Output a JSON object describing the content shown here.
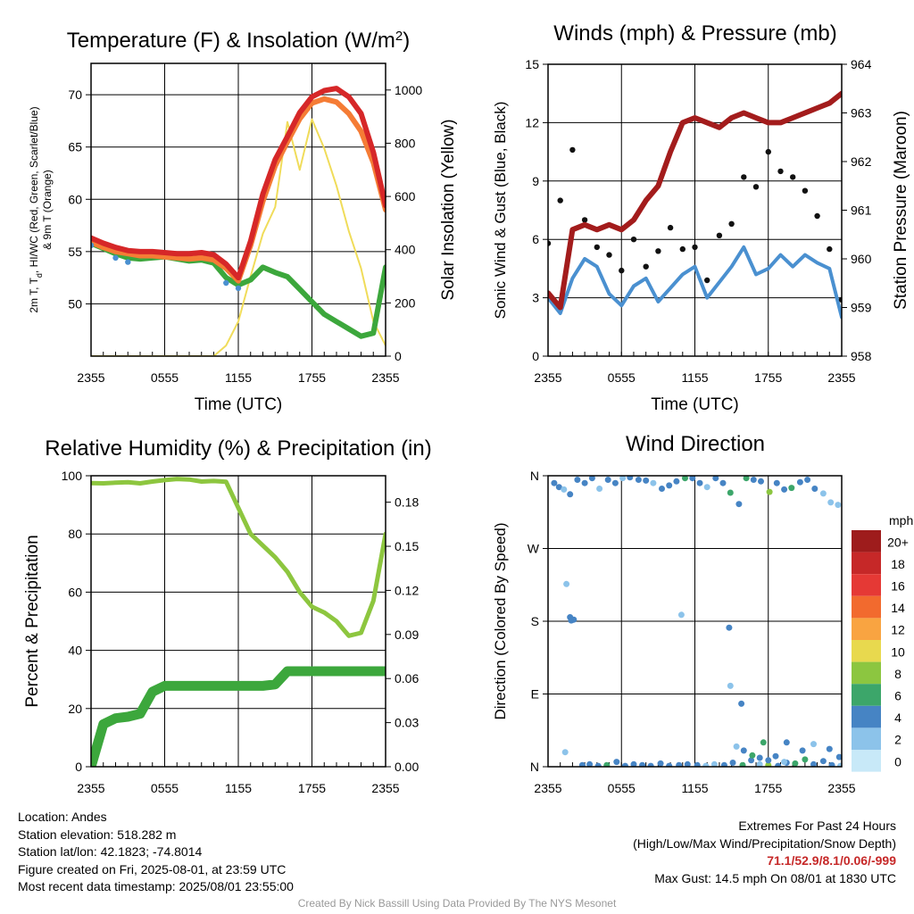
{
  "x_tick_labels": [
    "2355",
    "0555",
    "1155",
    "1755",
    "2355"
  ],
  "chart_data": [
    {
      "type": "line",
      "title": "Temperature (F) & Insolation (W/m²)",
      "xlabel": "Time (UTC)",
      "ylabel": "2m T, Td, HI/WC (Red, Green, Scarlet/Blue) & 9m T (Orange)",
      "ylabel_lines": [
        "2m T, T",
        "d",
        ", HI/WC (Red, Green, Scarlet/Blue)",
        "& 9m T (Orange)"
      ],
      "y2label": "Solar Insolation (Yellow)",
      "ylim": [
        45,
        73
      ],
      "y_ticks": [
        50,
        55,
        60,
        65,
        70
      ],
      "y2lim": [
        0,
        1100
      ],
      "y2_ticks": [
        0,
        200,
        400,
        600,
        800,
        1000
      ],
      "x": [
        0,
        1,
        2,
        3,
        4,
        5,
        6,
        7,
        8,
        9,
        10,
        11,
        12,
        13,
        14,
        15,
        16,
        17,
        18,
        19,
        20,
        21,
        22,
        23,
        24
      ],
      "series": [
        {
          "name": "2m T",
          "color": "#d62728",
          "axis": "left",
          "values": [
            56.3,
            55.8,
            55.4,
            55.1,
            55.0,
            55.0,
            54.9,
            54.8,
            54.8,
            54.9,
            54.7,
            53.8,
            52.5,
            56.0,
            60.5,
            63.8,
            66.0,
            68.3,
            69.8,
            70.4,
            70.6,
            69.8,
            68.2,
            64.5,
            59.4
          ]
        },
        {
          "name": "9m T",
          "color": "#f57c35",
          "axis": "left",
          "values": [
            55.9,
            55.4,
            55.0,
            54.8,
            54.6,
            54.6,
            54.5,
            54.4,
            54.3,
            54.4,
            54.2,
            53.4,
            52.2,
            55.6,
            59.8,
            63.2,
            65.5,
            67.7,
            69.2,
            69.6,
            69.3,
            68.2,
            66.5,
            63.5,
            59.0
          ]
        },
        {
          "name": "Td",
          "color": "#3ca73c",
          "axis": "left",
          "values": [
            55.8,
            55.3,
            54.8,
            54.4,
            54.3,
            54.4,
            54.5,
            54.3,
            54.1,
            54.2,
            53.9,
            52.5,
            51.8,
            52.3,
            53.5,
            53.0,
            52.6,
            51.4,
            50.2,
            49.0,
            48.3,
            47.6,
            46.9,
            47.2,
            53.5
          ]
        },
        {
          "name": "HI/WC",
          "color": "#4a90d0",
          "axis": "left",
          "values": [
            55.6,
            null,
            54.4,
            54.0,
            null,
            null,
            null,
            null,
            null,
            null,
            null,
            52.0,
            51.5,
            null,
            null,
            null,
            null,
            null,
            null,
            null,
            null,
            null,
            null,
            null,
            null
          ]
        },
        {
          "name": "Solar Insolation",
          "color": "#f0dc5a",
          "axis": "right",
          "values": [
            0,
            0,
            0,
            0,
            0,
            0,
            0,
            0,
            0,
            0,
            0,
            40,
            130,
            300,
            460,
            560,
            880,
            700,
            890,
            780,
            640,
            470,
            330,
            130,
            40
          ]
        }
      ]
    },
    {
      "type": "line",
      "title": "Winds (mph) & Pressure (mb)",
      "xlabel": "Time (UTC)",
      "ylabel": "Sonic Wind & Gust (Blue, Black)",
      "y2label": "Station Pressure (Maroon)",
      "ylim": [
        0,
        15
      ],
      "y_ticks": [
        0,
        3,
        6,
        9,
        12,
        15
      ],
      "y2lim": [
        958,
        964
      ],
      "y2_ticks": [
        958,
        959,
        960,
        961,
        962,
        963,
        964
      ],
      "x": [
        0,
        1,
        2,
        3,
        4,
        5,
        6,
        7,
        8,
        9,
        10,
        11,
        12,
        13,
        14,
        15,
        16,
        17,
        18,
        19,
        20,
        21,
        22,
        23,
        24
      ],
      "series": [
        {
          "name": "Sonic Wind",
          "color": "#4a90d0",
          "axis": "left",
          "values": [
            3.0,
            2.2,
            4.0,
            5.0,
            4.6,
            3.2,
            2.6,
            3.6,
            4.0,
            2.8,
            3.5,
            4.2,
            4.6,
            3.0,
            3.8,
            4.6,
            5.6,
            4.2,
            4.5,
            5.2,
            4.6,
            5.2,
            4.8,
            4.5,
            2.0
          ]
        },
        {
          "name": "Gust",
          "color": "#111111",
          "axis": "left",
          "values": [
            5.8,
            8.0,
            10.6,
            7.0,
            5.6,
            5.2,
            4.4,
            6.0,
            4.6,
            5.4,
            6.6,
            5.5,
            5.6,
            3.9,
            6.2,
            6.8,
            9.2,
            8.7,
            10.5,
            9.5,
            9.2,
            8.5,
            7.2,
            5.5,
            2.9
          ]
        },
        {
          "name": "Station Pressure",
          "color": "#a31c1c",
          "axis": "right",
          "values": [
            959.3,
            959.0,
            960.6,
            960.7,
            960.6,
            960.7,
            960.6,
            960.8,
            961.2,
            961.5,
            962.2,
            962.8,
            962.9,
            962.8,
            962.7,
            962.9,
            963.0,
            962.9,
            962.8,
            962.8,
            962.9,
            963.0,
            963.1,
            963.2,
            963.4
          ]
        }
      ]
    },
    {
      "type": "line",
      "title": "Relative Humidity (%) & Precipitation (in)",
      "xlabel": "",
      "ylabel": "Percent & Precipitation",
      "ylim": [
        0,
        100
      ],
      "y_ticks": [
        0,
        20,
        40,
        60,
        80,
        100
      ],
      "y2lim": [
        0,
        0.198
      ],
      "y2_ticks": [
        0.0,
        0.03,
        0.06,
        0.09,
        0.12,
        0.15,
        0.18
      ],
      "y2_tick_labels": [
        "0.00",
        "0.03",
        "0.06",
        "0.09",
        "0.12",
        "0.15",
        "0.18"
      ],
      "x": [
        0,
        1,
        2,
        3,
        4,
        5,
        6,
        7,
        8,
        9,
        10,
        11,
        12,
        13,
        14,
        15,
        16,
        17,
        18,
        19,
        20,
        21,
        22,
        23,
        24
      ],
      "series": [
        {
          "name": "Relative Humidity",
          "color": "#8dc63f",
          "axis": "left",
          "values": [
            97.5,
            97.4,
            97.6,
            97.8,
            97.4,
            98.0,
            98.5,
            98.9,
            98.7,
            98.0,
            98.2,
            97.9,
            89,
            80,
            76,
            72,
            67,
            60,
            55,
            53,
            50,
            45,
            46,
            57,
            80
          ]
        },
        {
          "name": "Precipitation",
          "color": "#3ca73c",
          "axis": "right",
          "values": [
            0.0,
            0.029,
            0.033,
            0.034,
            0.036,
            0.051,
            0.055,
            0.055,
            0.055,
            0.055,
            0.055,
            0.055,
            0.055,
            0.055,
            0.055,
            0.056,
            0.065,
            0.065,
            0.065,
            0.065,
            0.065,
            0.065,
            0.065,
            0.065,
            0.065
          ]
        }
      ]
    },
    {
      "type": "scatter",
      "title": "Wind Direction",
      "xlabel": "",
      "ylabel": "Direction (Colored By Speed)",
      "ylim": [
        0,
        360
      ],
      "y_ticks": [
        0,
        90,
        180,
        270,
        360
      ],
      "y_tick_labels": [
        "N",
        "E",
        "S",
        "W",
        "N"
      ],
      "x": [
        0.5,
        0.9,
        1.3,
        1.8,
        2.4,
        3.0,
        3.6,
        4.2,
        4.9,
        5.5,
        6.1,
        6.7,
        7.4,
        8.0,
        8.6,
        9.3,
        9.9,
        10.5,
        11.2,
        11.8,
        12.4,
        13.0,
        13.7,
        14.3,
        14.9,
        15.6,
        16.2,
        16.8,
        17.4,
        18.1,
        18.7,
        19.3,
        19.9,
        20.6,
        21.2,
        21.8,
        22.5,
        23.1,
        23.7,
        1.5,
        1.8,
        1.9,
        2.1,
        1.4,
        10.9,
        14.9,
        15.8,
        14.8,
        17.6,
        19.5,
        20.8,
        21.7,
        23.0,
        23.8,
        2.8,
        3.4,
        4.1,
        4.8,
        5.6,
        6.3,
        7.0,
        7.7,
        8.4,
        9.2,
        9.9,
        10.7,
        11.4,
        12.2,
        12.9,
        13.6,
        14.4,
        15.1,
        15.9,
        16.6,
        17.3,
        18.0,
        18.8,
        19.5,
        20.2,
        21.0,
        21.7,
        22.5,
        23.2,
        23.9,
        15.4,
        16.0,
        16.7,
        17.3,
        18.0,
        18.6,
        19.3
      ],
      "values": [
        351,
        346,
        343,
        337,
        355,
        351,
        357,
        344,
        355,
        351,
        357,
        358,
        355,
        354,
        351,
        344,
        348,
        353,
        357,
        357,
        351,
        346,
        357,
        351,
        339,
        325,
        357,
        355,
        353,
        340,
        351,
        343,
        345,
        352,
        355,
        344,
        338,
        327,
        324,
        226,
        185,
        181,
        182,
        18,
        188,
        100,
        78,
        172,
        30,
        30,
        20,
        28,
        22,
        12,
        2,
        3,
        1,
        2,
        6,
        1,
        3,
        2,
        1,
        4,
        1,
        2,
        3,
        2,
        1,
        3,
        2,
        5,
        2,
        8,
        3,
        2,
        1,
        5,
        4,
        9,
        3,
        7,
        2,
        1,
        25,
        20,
        14,
        11,
        8,
        13,
        6
      ],
      "speeds": [
        3,
        4,
        2,
        3,
        4,
        3,
        3,
        2,
        4,
        3,
        2,
        3,
        4,
        3,
        2,
        4,
        3,
        3,
        5,
        4,
        3,
        2,
        4,
        3,
        6,
        3,
        5,
        4,
        3,
        8,
        4,
        3,
        5,
        3,
        4,
        4,
        2,
        1,
        1,
        2,
        4,
        3,
        3,
        2,
        1,
        2,
        4,
        3,
        5,
        4,
        3,
        2,
        4,
        3,
        3,
        4,
        4,
        5,
        3,
        4,
        4,
        3,
        4,
        4,
        3,
        4,
        4,
        3,
        2,
        2,
        4,
        3,
        6,
        4,
        2,
        7,
        4,
        3,
        5,
        6,
        4,
        4,
        3,
        2,
        2,
        3,
        6,
        3,
        4,
        4,
        2
      ],
      "colorbar": {
        "unit": "mph",
        "labels": [
          "20+",
          "18",
          "16",
          "14",
          "12",
          "10",
          "8",
          "6",
          "4",
          "2",
          "0"
        ],
        "colors": [
          "#9e1c1c",
          "#c62828",
          "#e53935",
          "#f26a2e",
          "#f9a441",
          "#e8d94e",
          "#8cc640",
          "#3ca66a",
          "#4684c4",
          "#8cc3ea",
          "#c8e9f8"
        ]
      }
    }
  ],
  "info_left": [
    "Location: Andes",
    "Station elevation: 518.282 m",
    "Station lat/lon: 42.1823; -74.8014",
    "Figure created on Fri, 2025-08-01, at 23:59 UTC",
    "Most recent data timestamp: 2025/08/01 23:55:00"
  ],
  "extremes": {
    "title": "Extremes For Past 24 Hours",
    "subtitle": "(High/Low/Max Wind/Precipitation/Snow Depth)",
    "values": "71.1/52.9/8.1/0.06/-999",
    "max_gust": "Max Gust: 14.5 mph On 08/01 at 1830 UTC"
  },
  "credit": "Created By Nick Bassill Using Data Provided By The NYS Mesonet"
}
